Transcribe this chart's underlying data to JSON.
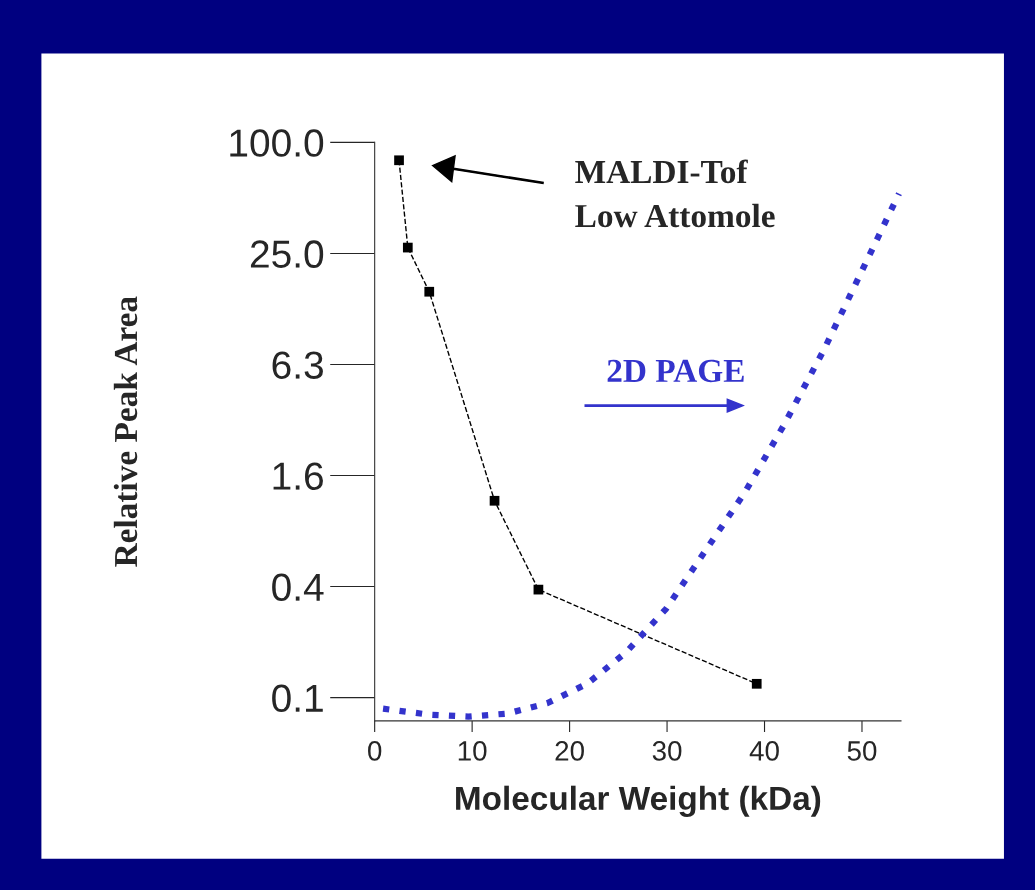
{
  "chart_data": {
    "type": "line",
    "xlabel": "Molecular Weight (kDa)",
    "ylabel": "Relative Peak Area",
    "log": "y",
    "xlim": [
      0,
      54
    ],
    "xticks": [
      0,
      10,
      20,
      30,
      40,
      50
    ],
    "ylim": [
      0.073,
      100
    ],
    "yticks": [
      {
        "value": 0.09765625,
        "label": "0.1"
      },
      {
        "value": 0.390625,
        "label": "0.4"
      },
      {
        "value": 1.5625,
        "label": "1.6"
      },
      {
        "value": 6.25,
        "label": "6.3"
      },
      {
        "value": 25,
        "label": "25.0"
      },
      {
        "value": 100,
        "label": "100.0"
      }
    ],
    "grid": false,
    "legend": false,
    "annotations": [
      "MALDI-Tof\nLow Attomole"
    ],
    "series": [
      {
        "color": "#000000",
        "marker": "square",
        "line_style": "dashed",
        "x": [
          2.5,
          3.4,
          5.6,
          12.3,
          16.8,
          39.2
        ],
        "values": [
          80,
          26.9,
          15.5,
          1.14,
          0.376,
          0.116
        ]
      },
      {
        "name": "2D PAGE",
        "color": "#3333cc",
        "marker": "none",
        "line_style": "dotted",
        "x": [
          0.86,
          5.5,
          9.6,
          13.6,
          17.7,
          21.8,
          25.8,
          29.9,
          33.9,
          38.0,
          42.0,
          46.1,
          50.2,
          53.8
        ],
        "values": [
          0.085,
          0.079,
          0.077,
          0.08,
          0.091,
          0.116,
          0.172,
          0.296,
          0.607,
          1.27,
          2.94,
          7.52,
          21.2,
          52.8
        ]
      }
    ]
  }
}
